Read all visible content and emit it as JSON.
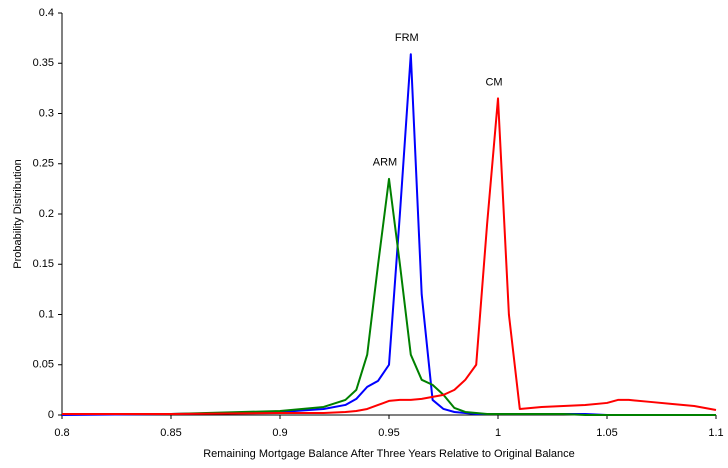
{
  "chart_data": {
    "type": "line",
    "xlabel": "Remaining Mortgage Balance After Three Years Relative to Original Balance",
    "ylabel": "Probability Distribution",
    "x": [
      0.8,
      0.85,
      0.9,
      0.92,
      0.93,
      0.935,
      0.94,
      0.945,
      0.95,
      0.955,
      0.96,
      0.965,
      0.97,
      0.975,
      0.98,
      0.985,
      0.99,
      0.995,
      1.0,
      1.005,
      1.01,
      1.02,
      1.03,
      1.04,
      1.05,
      1.055,
      1.06,
      1.07,
      1.08,
      1.09,
      1.1
    ],
    "series": [
      {
        "name": "FRM",
        "color": "#0000ff",
        "values": [
          0,
          0.001,
          0.003,
          0.006,
          0.01,
          0.016,
          0.028,
          0.034,
          0.05,
          0.2,
          0.359,
          0.12,
          0.015,
          0.006,
          0.003,
          0.002,
          0.001,
          0.001,
          0.001,
          0.001,
          0.001,
          0.001,
          0.001,
          0.001,
          0,
          0,
          0,
          0,
          0,
          0,
          0
        ]
      },
      {
        "name": "ARM",
        "color": "#008000",
        "values": [
          0.001,
          0.001,
          0.004,
          0.008,
          0.015,
          0.025,
          0.06,
          0.15,
          0.235,
          0.15,
          0.06,
          0.035,
          0.03,
          0.02,
          0.007,
          0.003,
          0.002,
          0.001,
          0.001,
          0.001,
          0.001,
          0.001,
          0.001,
          0,
          0,
          0,
          0,
          0,
          0,
          0,
          0
        ]
      },
      {
        "name": "CM",
        "color": "#ff0000",
        "values": [
          0.001,
          0.001,
          0.002,
          0.002,
          0.003,
          0.004,
          0.006,
          0.01,
          0.014,
          0.015,
          0.015,
          0.016,
          0.018,
          0.02,
          0.025,
          0.035,
          0.05,
          0.19,
          0.315,
          0.1,
          0.006,
          0.008,
          0.009,
          0.01,
          0.012,
          0.015,
          0.015,
          0.013,
          0.011,
          0.009,
          0.005
        ]
      }
    ],
    "xlim": [
      0.8,
      1.1
    ],
    "xticks": [
      0.8,
      0.85,
      0.9,
      0.95,
      1,
      1.05,
      1.1
    ],
    "ylim": [
      0,
      0.4
    ],
    "yticks": [
      0,
      0.05,
      0.1,
      0.15,
      0.2,
      0.25,
      0.3,
      0.35,
      0.4
    ],
    "grid": false
  }
}
